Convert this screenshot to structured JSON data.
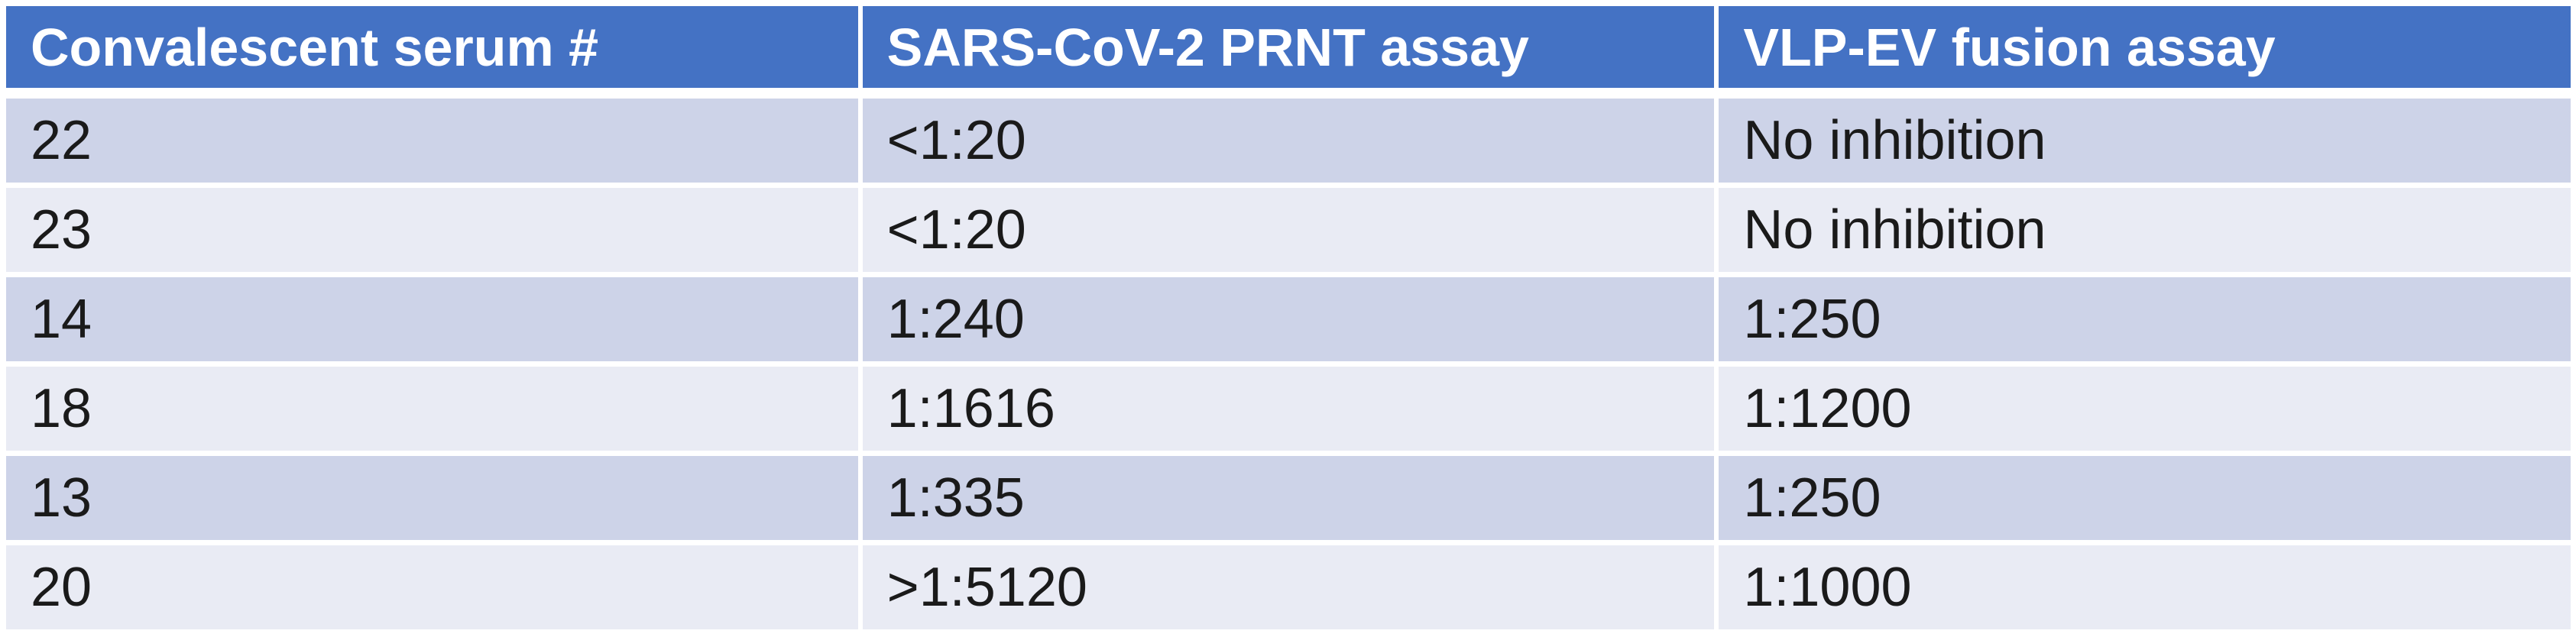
{
  "chart_data": {
    "type": "table",
    "title": "",
    "columns": [
      "Convalescent serum #",
      "SARS-CoV-2 PRNT assay",
      "VLP-EV fusion assay"
    ],
    "rows": [
      [
        "22",
        "<1:20",
        "No inhibition"
      ],
      [
        "23",
        "<1:20",
        "No inhibition"
      ],
      [
        "14",
        "1:240",
        "1:250"
      ],
      [
        "18",
        "1:1616",
        "1:1200"
      ],
      [
        "13",
        "1:335",
        "1:250"
      ],
      [
        "20",
        ">1:5120",
        "1:1000"
      ]
    ],
    "layout": {
      "header_style": "solid blue bar, white bold text",
      "banding": "alternating dark/light rows starting dark",
      "gridlines": "thin white separators between all cells"
    }
  },
  "colors": {
    "header_bg": "#4472C4",
    "header_text": "#FFFFFF",
    "row_band_dark": "#CDD3E8",
    "row_band_light": "#E9EBF4",
    "body_text": "#1A1A1A",
    "separator": "#FFFFFF",
    "page_bg": "#FFFFFF"
  }
}
